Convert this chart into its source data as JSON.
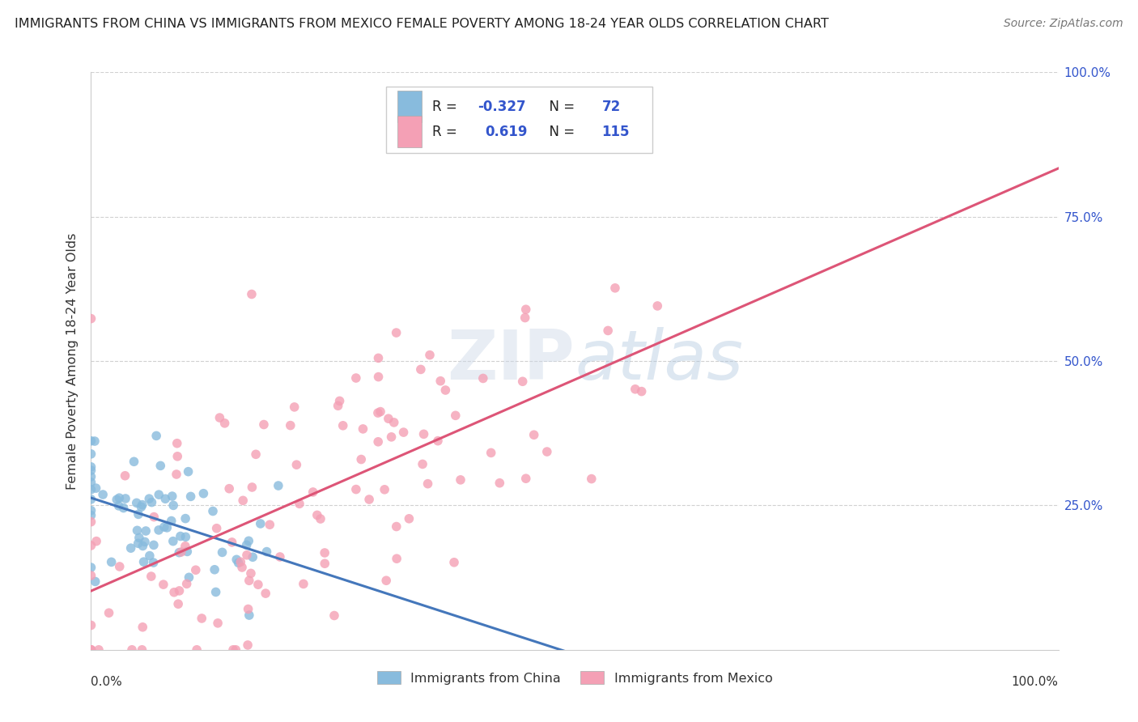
{
  "title": "IMMIGRANTS FROM CHINA VS IMMIGRANTS FROM MEXICO FEMALE POVERTY AMONG 18-24 YEAR OLDS CORRELATION CHART",
  "source": "Source: ZipAtlas.com",
  "ylabel": "Female Poverty Among 18-24 Year Olds",
  "china_R": -0.327,
  "china_N": 72,
  "mexico_R": 0.619,
  "mexico_N": 115,
  "china_color": "#88bbdd",
  "mexico_color": "#f4a0b5",
  "china_line_color": "#4477bb",
  "mexico_line_color": "#dd5577",
  "watermark_zip": "ZIP",
  "watermark_atlas": "atlas",
  "xlim": [
    0,
    1
  ],
  "ylim": [
    0,
    1
  ],
  "xticklabels": [
    "0.0%",
    "",
    "",
    "",
    "",
    "",
    "",
    "",
    "",
    "",
    "100.0%"
  ],
  "yticklabels_right": [
    "25.0%",
    "50.0%",
    "75.0%",
    "100.0%"
  ],
  "legend_label_china": "Immigrants from China",
  "legend_label_mexico": "Immigrants from Mexico",
  "blue_text_color": "#3355cc",
  "tick_color": "#3355cc"
}
